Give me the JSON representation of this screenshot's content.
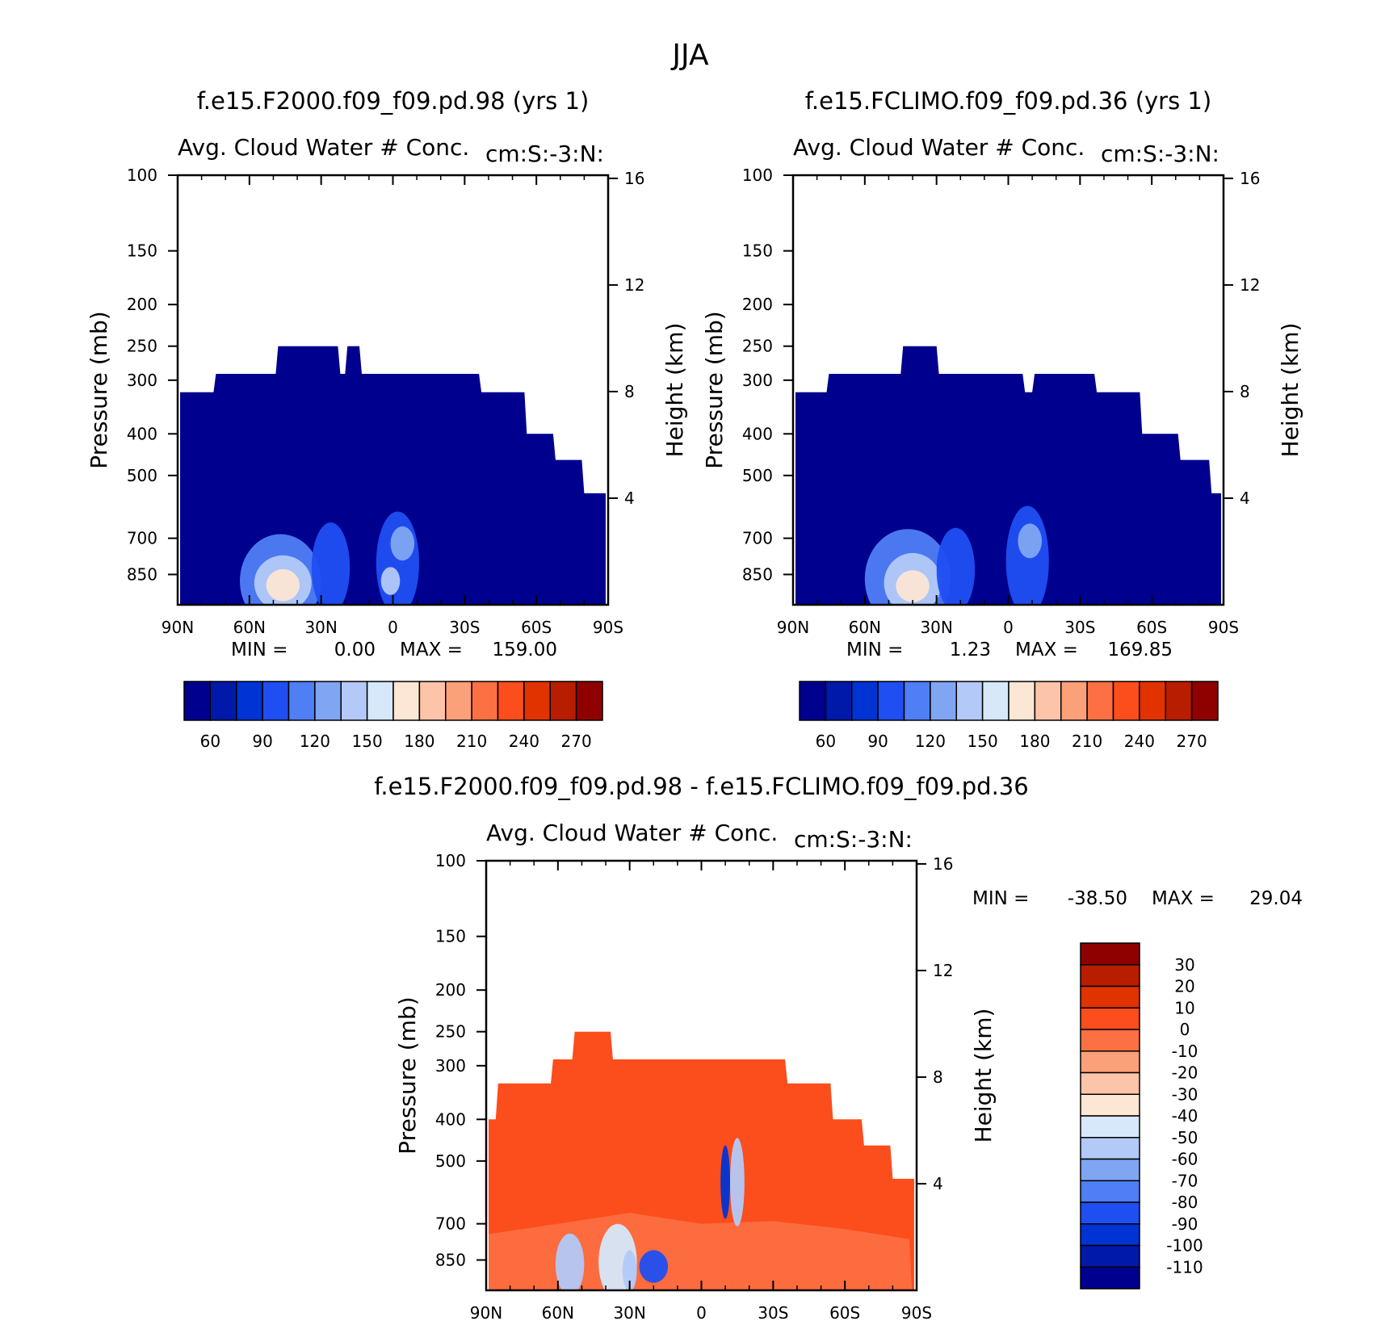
{
  "figure_title": "JJA",
  "chart_data": [
    {
      "type": "heatmap",
      "title": "f.e15.F2000.f09_f09.pd.98 (yrs 1)",
      "subtitle_left": "Avg. Cloud Water # Conc.",
      "subtitle_right": "cm:S:-3:N:",
      "ylabel": "Pressure (mb)",
      "y2label": "Height (km)",
      "x_ticks": [
        "90N",
        "60N",
        "30N",
        "0",
        "30S",
        "60S",
        "90S"
      ],
      "y_ticks": [
        100,
        150,
        200,
        250,
        300,
        400,
        500,
        700,
        850
      ],
      "y2_ticks": [
        16,
        12,
        8,
        4
      ],
      "ylim": [
        1000,
        100
      ],
      "stats": {
        "min_label": "MIN =",
        "min": "0.00",
        "max_label": "MAX =",
        "max": "159.00"
      },
      "colorbar": {
        "orientation": "horizontal",
        "colors": [
          "#00008f",
          "#0019a8",
          "#0033d4",
          "#1f4ff2",
          "#4f7ef5",
          "#80a5f2",
          "#b3c9f7",
          "#d6e8fa",
          "#fce6d4",
          "#fcc4a8",
          "#fca07a",
          "#fc7043",
          "#fc4d1c",
          "#e03300",
          "#b81d00",
          "#8f0000"
        ],
        "labels": [
          "60",
          "90",
          "120",
          "150",
          "180",
          "210",
          "240",
          "270"
        ]
      },
      "top_profile": [
        {
          "lat": -89,
          "p": 320
        },
        {
          "lat": -75,
          "p": 320
        },
        {
          "lat": -74,
          "p": 290
        },
        {
          "lat": -49,
          "p": 290
        },
        {
          "lat": -48,
          "p": 250
        },
        {
          "lat": -23,
          "p": 250
        },
        {
          "lat": -22,
          "p": 290
        },
        {
          "lat": -20,
          "p": 290
        },
        {
          "lat": -19,
          "p": 250
        },
        {
          "lat": -14,
          "p": 250
        },
        {
          "lat": -13,
          "p": 290
        },
        {
          "lat": 36,
          "p": 290
        },
        {
          "lat": 37,
          "p": 320
        },
        {
          "lat": 55,
          "p": 320
        },
        {
          "lat": 56,
          "p": 400
        },
        {
          "lat": 67,
          "p": 400
        },
        {
          "lat": 68,
          "p": 460
        },
        {
          "lat": 79,
          "p": 460
        },
        {
          "lat": 80,
          "p": 550
        },
        {
          "lat": 89,
          "p": 550
        }
      ],
      "blobs": [
        {
          "lat": -47,
          "p": 880,
          "rx": 17,
          "ry": 200,
          "level": 4
        },
        {
          "lat": -46,
          "p": 890,
          "rx": 12,
          "ry": 120,
          "level": 6
        },
        {
          "lat": -46,
          "p": 900,
          "rx": 7,
          "ry": 70,
          "level": 8
        },
        {
          "lat": -26,
          "p": 820,
          "rx": 8,
          "ry": 180,
          "level": 3
        },
        {
          "lat": 2,
          "p": 800,
          "rx": 9,
          "ry": 200,
          "level": 3
        },
        {
          "lat": 4,
          "p": 720,
          "rx": 5,
          "ry": 60,
          "level": 5
        },
        {
          "lat": -1,
          "p": 880,
          "rx": 4,
          "ry": 60,
          "level": 6
        }
      ]
    },
    {
      "type": "heatmap",
      "title": "f.e15.FCLIMO.f09_f09.pd.36 (yrs 1)",
      "subtitle_left": "Avg. Cloud Water # Conc.",
      "subtitle_right": "cm:S:-3:N:",
      "ylabel": "Pressure (mb)",
      "y2label": "Height (km)",
      "x_ticks": [
        "90N",
        "60N",
        "30N",
        "0",
        "30S",
        "60S",
        "90S"
      ],
      "y_ticks": [
        100,
        150,
        200,
        250,
        300,
        400,
        500,
        700,
        850
      ],
      "y2_ticks": [
        16,
        12,
        8,
        4
      ],
      "ylim": [
        1000,
        100
      ],
      "stats": {
        "min_label": "MIN =",
        "min": "1.23",
        "max_label": "MAX =",
        "max": "169.85"
      },
      "colorbar": {
        "orientation": "horizontal",
        "colors": [
          "#00008f",
          "#0019a8",
          "#0033d4",
          "#1f4ff2",
          "#4f7ef5",
          "#80a5f2",
          "#b3c9f7",
          "#d6e8fa",
          "#fce6d4",
          "#fcc4a8",
          "#fca07a",
          "#fc7043",
          "#fc4d1c",
          "#e03300",
          "#b81d00",
          "#8f0000"
        ],
        "labels": [
          "60",
          "90",
          "120",
          "150",
          "180",
          "210",
          "240",
          "270"
        ]
      },
      "top_profile": [
        {
          "lat": -89,
          "p": 320
        },
        {
          "lat": -76,
          "p": 320
        },
        {
          "lat": -75,
          "p": 290
        },
        {
          "lat": -45,
          "p": 290
        },
        {
          "lat": -44,
          "p": 250
        },
        {
          "lat": -30,
          "p": 250
        },
        {
          "lat": -29,
          "p": 290
        },
        {
          "lat": 6,
          "p": 290
        },
        {
          "lat": 7,
          "p": 320
        },
        {
          "lat": 10,
          "p": 320
        },
        {
          "lat": 11,
          "p": 290
        },
        {
          "lat": 36,
          "p": 290
        },
        {
          "lat": 37,
          "p": 320
        },
        {
          "lat": 55,
          "p": 320
        },
        {
          "lat": 56,
          "p": 400
        },
        {
          "lat": 71,
          "p": 400
        },
        {
          "lat": 72,
          "p": 460
        },
        {
          "lat": 84,
          "p": 460
        },
        {
          "lat": 85,
          "p": 550
        },
        {
          "lat": 89,
          "p": 550
        }
      ],
      "blobs": [
        {
          "lat": -42,
          "p": 870,
          "rx": 18,
          "ry": 210,
          "level": 4
        },
        {
          "lat": -40,
          "p": 890,
          "rx": 12,
          "ry": 130,
          "level": 6
        },
        {
          "lat": -40,
          "p": 905,
          "rx": 7,
          "ry": 70,
          "level": 8
        },
        {
          "lat": -22,
          "p": 830,
          "rx": 8,
          "ry": 170,
          "level": 3
        },
        {
          "lat": 8,
          "p": 790,
          "rx": 9,
          "ry": 210,
          "level": 3
        },
        {
          "lat": 9,
          "p": 710,
          "rx": 5,
          "ry": 60,
          "level": 5
        }
      ]
    },
    {
      "type": "heatmap",
      "title": "f.e15.F2000.f09_f09.pd.98 - f.e15.FCLIMO.f09_f09.pd.36",
      "subtitle_left": "Avg. Cloud Water # Conc.",
      "subtitle_right": "cm:S:-3:N:",
      "ylabel": "Pressure (mb)",
      "y2label": "Height (km)",
      "x_ticks": [
        "90N",
        "60N",
        "30N",
        "0",
        "30S",
        "60S",
        "90S"
      ],
      "y_ticks": [
        100,
        150,
        200,
        250,
        300,
        400,
        500,
        700,
        850
      ],
      "y2_ticks": [
        16,
        12,
        8,
        4
      ],
      "ylim": [
        1000,
        100
      ],
      "stats": {
        "min_label": "MIN =",
        "min": "-38.50",
        "max_label": "MAX =",
        "max": "29.04"
      },
      "colorbar": {
        "orientation": "vertical",
        "colors": [
          "#8f0000",
          "#b81d00",
          "#e03300",
          "#fc4d1c",
          "#fc7043",
          "#fca07a",
          "#fcc4a8",
          "#fce6d4",
          "#d6e8fa",
          "#b3c9f7",
          "#80a5f2",
          "#4f7ef5",
          "#1f4ff2",
          "#0033d4",
          "#0019a8",
          "#00008f"
        ],
        "labels": [
          "30",
          "20",
          "10",
          "0",
          "-10",
          "-20",
          "-30",
          "-40",
          "-50",
          "-60",
          "-70",
          "-80",
          "-90",
          "-100",
          "-110"
        ]
      },
      "top_profile": [
        {
          "lat": -89,
          "p": 400
        },
        {
          "lat": -86,
          "p": 400
        },
        {
          "lat": -85,
          "p": 330
        },
        {
          "lat": -63,
          "p": 330
        },
        {
          "lat": -62,
          "p": 290
        },
        {
          "lat": -54,
          "p": 290
        },
        {
          "lat": -53,
          "p": 250
        },
        {
          "lat": -38,
          "p": 250
        },
        {
          "lat": -37,
          "p": 290
        },
        {
          "lat": 35,
          "p": 290
        },
        {
          "lat": 36,
          "p": 330
        },
        {
          "lat": 54,
          "p": 330
        },
        {
          "lat": 55,
          "p": 400
        },
        {
          "lat": 67,
          "p": 400
        },
        {
          "lat": 68,
          "p": 460
        },
        {
          "lat": 79,
          "p": 460
        },
        {
          "lat": 80,
          "p": 550
        },
        {
          "lat": 89,
          "p": 550
        }
      ],
      "blobs": [
        {
          "lat": -35,
          "p": 860,
          "rx": 8,
          "ry": 160,
          "level": 8
        },
        {
          "lat": -30,
          "p": 900,
          "rx": 3,
          "ry": 90,
          "level": 9
        },
        {
          "lat": -20,
          "p": 880,
          "rx": 6,
          "ry": 70,
          "level": 12
        },
        {
          "lat": 15,
          "p": 560,
          "rx": 3,
          "ry": 120,
          "level": 9
        },
        {
          "lat": 10,
          "p": 560,
          "rx": 2,
          "ry": 100,
          "level": 13
        },
        {
          "lat": -55,
          "p": 870,
          "rx": 6,
          "ry": 130,
          "level": 9
        }
      ]
    }
  ]
}
